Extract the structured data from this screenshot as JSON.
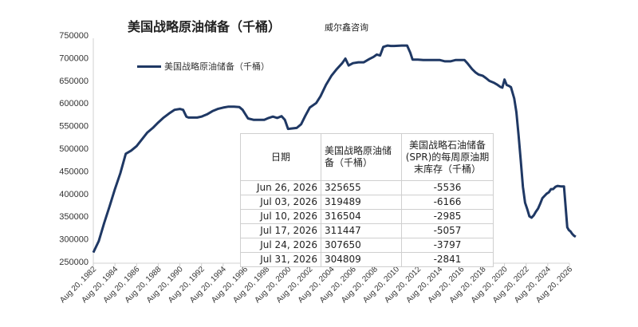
{
  "header": {
    "title": "美国战略原油储备（千桶）",
    "source": "威尔鑫咨询"
  },
  "legend": {
    "label": "美国战略原油储备（千桶）"
  },
  "table": {
    "headers": [
      "日期",
      "美国战略原油储备（千桶）",
      "美国战略石油储备(SPR)的每周原油期末库存（千桶）"
    ],
    "rows": [
      [
        "Jun 26, 2026",
        "325655",
        "-5536"
      ],
      [
        "Jul 03, 2026",
        "319489",
        "-6166"
      ],
      [
        "Jul 10, 2026",
        "316504",
        "-2985"
      ],
      [
        "Jul 17, 2026",
        "311447",
        "-5057"
      ],
      [
        "Jul 24, 2026",
        "307650",
        "-3797"
      ],
      [
        "Jul 31, 2026",
        "304809",
        "-2841"
      ]
    ]
  },
  "colors": {
    "series": "#1f3864",
    "axis": "#d0d0d0",
    "text": "#1f2d3d"
  },
  "chart_data": {
    "type": "line",
    "title": "美国战略原油储备（千桶）",
    "ylim": [
      250000,
      750000
    ],
    "yticks": [
      250000,
      300000,
      350000,
      400000,
      450000,
      500000,
      550000,
      600000,
      650000,
      700000,
      750000
    ],
    "xticks": [
      "Aug 20, 1982",
      "Aug 20, 1984",
      "Aug 20, 1986",
      "Aug 20, 1988",
      "Aug 20, 1990",
      "Aug 20, 1992",
      "Aug 20, 1994",
      "Aug 20, 1996",
      "Aug 20, 1998",
      "Aug 20, 2000",
      "Aug 20, 2002",
      "Aug 20, 2004",
      "Aug 20, 2006",
      "Aug 20, 2008",
      "Aug 20, 2010",
      "Aug 20, 2012",
      "Aug 20, 2014",
      "Aug 20, 2016",
      "Aug 20, 2018",
      "Aug 20, 2020",
      "Aug 20, 2022",
      "Aug 20, 2024",
      "Aug 20, 2026"
    ],
    "xtick_years": [
      1982,
      1984,
      1986,
      1988,
      1990,
      1992,
      1994,
      1996,
      1998,
      2000,
      2002,
      2004,
      2006,
      2008,
      2010,
      2012,
      2014,
      2016,
      2018,
      2020,
      2022,
      2024,
      2026
    ],
    "x_range": [
      1982,
      2026
    ],
    "grid": false,
    "legend_position": "top-left",
    "series": [
      {
        "name": "美国战略原油储备（千桶）",
        "x": [
          1982.0,
          1982.5,
          1983.0,
          1983.5,
          1984.0,
          1984.5,
          1985.0,
          1985.5,
          1986.0,
          1986.5,
          1987.0,
          1987.5,
          1988.0,
          1988.5,
          1989.0,
          1989.5,
          1990.0,
          1990.3,
          1990.6,
          1990.8,
          1991.2,
          1991.6,
          1992.0,
          1992.5,
          1993.0,
          1993.5,
          1994.0,
          1994.5,
          1995.0,
          1995.5,
          1995.8,
          1996.3,
          1996.8,
          1997.3,
          1997.8,
          1998.2,
          1998.6,
          1999.0,
          1999.4,
          1999.7,
          2000.0,
          2000.8,
          2001.2,
          2001.6,
          2002.0,
          2002.6,
          2003.0,
          2003.5,
          2004.0,
          2004.5,
          2005.0,
          2005.3,
          2005.6,
          2006.0,
          2006.5,
          2007.0,
          2007.5,
          2007.9,
          2008.2,
          2008.5,
          2008.8,
          2009.2,
          2009.5,
          2009.8,
          2010.5,
          2011.0,
          2011.3,
          2011.5,
          2012.0,
          2012.5,
          2013.0,
          2013.5,
          2014.0,
          2014.5,
          2015.0,
          2015.5,
          2016.0,
          2016.3,
          2016.6,
          2017.0,
          2017.3,
          2017.6,
          2018.0,
          2018.3,
          2018.6,
          2019.0,
          2019.3,
          2019.6,
          2019.8,
          2020.0,
          2020.2,
          2020.4,
          2020.6,
          2020.9,
          2021.1,
          2021.3,
          2021.5,
          2021.7,
          2021.9,
          2022.1,
          2022.3,
          2022.5,
          2022.7,
          2022.9,
          2023.1,
          2023.3,
          2023.5,
          2023.7,
          2023.9,
          2024.1,
          2024.3,
          2024.5,
          2024.7,
          2024.9,
          2025.2,
          2025.5,
          2025.8,
          2025.95,
          2026.1,
          2026.25,
          2026.4,
          2026.58
        ],
        "y": [
          270000,
          295000,
          335000,
          372000,
          410000,
          445000,
          488000,
          495000,
          505000,
          520000,
          535000,
          545000,
          557000,
          568000,
          577000,
          585000,
          587000,
          585000,
          570000,
          568000,
          568000,
          568000,
          570000,
          575000,
          582000,
          587000,
          590000,
          592000,
          592000,
          591000,
          585000,
          566000,
          563000,
          563000,
          563000,
          567000,
          570000,
          567000,
          571000,
          563000,
          543000,
          545000,
          553000,
          572000,
          590000,
          600000,
          615000,
          640000,
          660000,
          675000,
          688000,
          698000,
          683000,
          688000,
          690000,
          690000,
          697000,
          702000,
          707000,
          705000,
          724000,
          727000,
          726000,
          726000,
          727000,
          727000,
          711000,
          696000,
          696000,
          695000,
          695000,
          695000,
          695000,
          692000,
          692000,
          695000,
          695000,
          695000,
          687000,
          675000,
          668000,
          663000,
          660000,
          655000,
          649000,
          645000,
          641000,
          636000,
          634000,
          652000,
          640000,
          638000,
          635000,
          610000,
          580000,
          530000,
          475000,
          415000,
          380000,
          366000,
          350000,
          347000,
          352000,
          360000,
          367000,
          378000,
          390000,
          395000,
          400000,
          403000,
          410000,
          410000,
          415000,
          417000,
          416000,
          416000,
          325655,
          319489,
          316504,
          311447,
          307650,
          304809
        ]
      }
    ]
  }
}
